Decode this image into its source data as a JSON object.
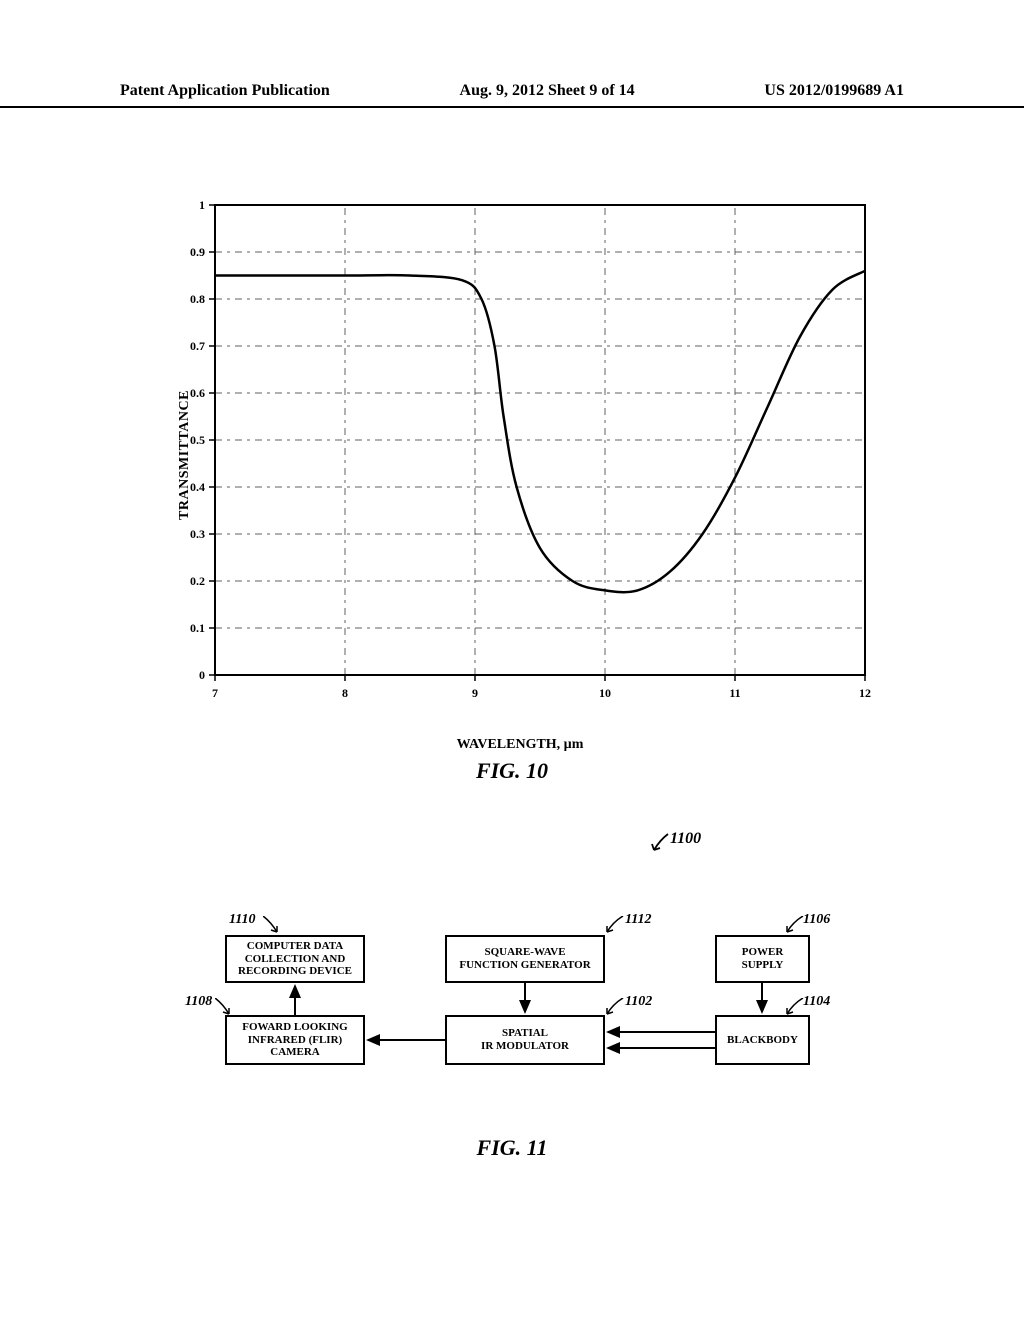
{
  "header": {
    "left": "Patent Application Publication",
    "center": "Aug. 9, 2012   Sheet 9 of 14",
    "right": "US 2012/0199689 A1"
  },
  "chart": {
    "type": "line",
    "ylabel": "TRANSMITTANCE",
    "xlabel": "WAVELENGTH, µm",
    "xlim": [
      7,
      12
    ],
    "ylim": [
      0,
      1
    ],
    "xticks": [
      7,
      8,
      9,
      10,
      11,
      12
    ],
    "yticks": [
      0,
      0.1,
      0.2,
      0.3,
      0.4,
      0.5,
      0.6,
      0.7,
      0.8,
      0.9,
      1
    ],
    "line_color": "#000000",
    "line_width": 2.5,
    "grid_color": "#606060",
    "border_color": "#000000",
    "background_color": "#ffffff",
    "label_fontsize": 14,
    "tick_fontsize": 12,
    "data": [
      {
        "x": 7.0,
        "y": 0.85
      },
      {
        "x": 7.5,
        "y": 0.85
      },
      {
        "x": 8.0,
        "y": 0.85
      },
      {
        "x": 8.5,
        "y": 0.85
      },
      {
        "x": 8.9,
        "y": 0.84
      },
      {
        "x": 9.05,
        "y": 0.8
      },
      {
        "x": 9.15,
        "y": 0.7
      },
      {
        "x": 9.22,
        "y": 0.55
      },
      {
        "x": 9.32,
        "y": 0.4
      },
      {
        "x": 9.5,
        "y": 0.27
      },
      {
        "x": 9.75,
        "y": 0.2
      },
      {
        "x": 10.0,
        "y": 0.18
      },
      {
        "x": 10.25,
        "y": 0.18
      },
      {
        "x": 10.5,
        "y": 0.22
      },
      {
        "x": 10.75,
        "y": 0.3
      },
      {
        "x": 11.0,
        "y": 0.42
      },
      {
        "x": 11.25,
        "y": 0.57
      },
      {
        "x": 11.5,
        "y": 0.72
      },
      {
        "x": 11.75,
        "y": 0.82
      },
      {
        "x": 12.0,
        "y": 0.86
      }
    ]
  },
  "fig10_caption": "FIG. 10",
  "ref_1100": "1100",
  "diagram": {
    "type": "flowchart",
    "blocks": {
      "b1110": {
        "ref": "1110",
        "lines": [
          "COMPUTER DATA",
          "COLLECTION AND",
          "RECORDING DEVICE"
        ]
      },
      "b1112": {
        "ref": "1112",
        "lines": [
          "SQUARE-WAVE",
          "FUNCTION GENERATOR"
        ]
      },
      "b1106": {
        "ref": "1106",
        "lines": [
          "POWER",
          "SUPPLY"
        ]
      },
      "b1108": {
        "ref": "1108",
        "lines": [
          "FOWARD LOOKING",
          "INFRARED (FLIR)",
          "CAMERA"
        ]
      },
      "b1102": {
        "ref": "1102",
        "lines": [
          "SPATIAL",
          "IR MODULATOR"
        ]
      },
      "b1104": {
        "ref": "1104",
        "lines": [
          "BLACKBODY"
        ]
      }
    },
    "block_border_color": "#000000",
    "block_border_width": 2,
    "block_bg": "#ffffff",
    "arrow_color": "#000000"
  },
  "fig11_caption": "FIG. 11"
}
